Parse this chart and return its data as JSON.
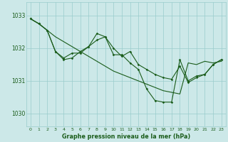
{
  "title": "Graphe pression niveau de la mer (hPa)",
  "background_color": "#cce8e8",
  "grid_color": "#99cccc",
  "line_color": "#1a5c1a",
  "xlim": [
    -0.5,
    23.5
  ],
  "ylim": [
    1029.6,
    1033.4
  ],
  "yticks": [
    1030,
    1031,
    1032,
    1033
  ],
  "xticks": [
    0,
    1,
    2,
    3,
    4,
    5,
    6,
    7,
    8,
    9,
    10,
    11,
    12,
    13,
    14,
    15,
    16,
    17,
    18,
    19,
    20,
    21,
    22,
    23
  ],
  "series1_x": [
    0,
    1,
    2,
    3,
    4,
    5,
    6,
    7,
    8,
    9,
    10,
    11,
    12,
    13,
    14,
    15,
    16,
    17,
    18,
    19,
    20,
    21,
    22,
    23
  ],
  "series1_y": [
    1032.9,
    1032.75,
    1032.55,
    1032.35,
    1032.2,
    1032.05,
    1031.9,
    1031.75,
    1031.6,
    1031.45,
    1031.3,
    1031.2,
    1031.1,
    1031.0,
    1030.9,
    1030.8,
    1030.7,
    1030.65,
    1030.6,
    1031.55,
    1031.5,
    1031.6,
    1031.55,
    1031.6
  ],
  "series2_x": [
    0,
    1,
    2,
    3,
    4,
    5,
    6,
    7,
    8,
    9,
    10,
    11,
    12,
    13,
    14,
    15,
    16,
    17,
    18,
    19,
    20,
    21,
    22,
    23
  ],
  "series2_y": [
    1032.9,
    1032.75,
    1032.55,
    1031.9,
    1031.7,
    1031.85,
    1031.85,
    1032.05,
    1032.25,
    1032.35,
    1031.8,
    1031.8,
    1031.55,
    1031.35,
    1030.75,
    1030.4,
    1030.35,
    1030.35,
    1031.65,
    1031.0,
    1031.15,
    1031.2,
    1031.5,
    1031.65
  ],
  "series3_x": [
    0,
    1,
    2,
    3,
    4,
    5,
    6,
    7,
    8,
    9,
    10,
    11,
    12,
    13,
    14,
    15,
    16,
    17,
    18,
    19,
    20,
    21,
    22,
    23
  ],
  "series3_y": [
    1032.9,
    1032.75,
    1032.55,
    1031.9,
    1031.65,
    1031.7,
    1031.9,
    1032.05,
    1032.45,
    1032.35,
    1032.0,
    1031.75,
    1031.9,
    1031.5,
    1031.35,
    1031.2,
    1031.1,
    1031.05,
    1031.45,
    1030.95,
    1031.1,
    1031.2,
    1031.5,
    1031.65
  ]
}
